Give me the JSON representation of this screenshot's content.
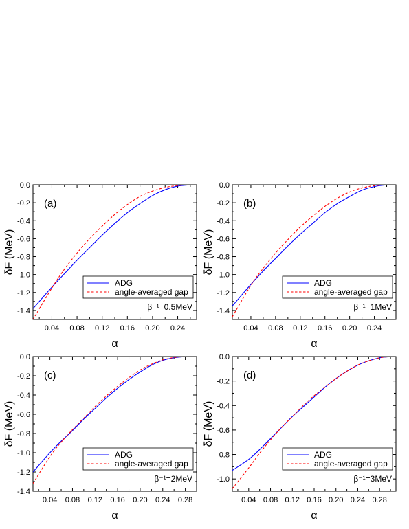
{
  "chart_data": [
    {
      "type": "line",
      "panel_label": "(a)",
      "annotation": "β⁻¹=0.5MeV",
      "xlabel": "α",
      "ylabel": "δF (MeV)",
      "xlim": [
        0.01,
        0.27
      ],
      "ylim": [
        -1.5,
        0.0
      ],
      "xticks": [
        "0.04",
        "0.08",
        "0.12",
        "0.16",
        "0.20",
        "0.24"
      ],
      "yticks": [
        "0.0",
        "-0.2",
        "-0.4",
        "-0.6",
        "-0.8",
        "-1.0",
        "-1.2",
        "-1.4"
      ],
      "legend_position": "lower-right",
      "series": [
        {
          "name": "ADG",
          "color": "#0000ff",
          "dash": "solid",
          "x": [
            0.01,
            0.04,
            0.06,
            0.08,
            0.1,
            0.12,
            0.14,
            0.16,
            0.18,
            0.2,
            0.22,
            0.24,
            0.26,
            0.27
          ],
          "y": [
            -1.38,
            -1.14,
            -0.99,
            -0.84,
            -0.7,
            -0.56,
            -0.43,
            -0.31,
            -0.21,
            -0.12,
            -0.055,
            -0.015,
            -0.001,
            0.0
          ]
        },
        {
          "name": "angle-averaged gap",
          "color": "#ff0000",
          "dash": "dashed",
          "x": [
            0.01,
            0.04,
            0.06,
            0.08,
            0.1,
            0.12,
            0.14,
            0.16,
            0.18,
            0.2,
            0.22,
            0.24,
            0.26,
            0.27
          ],
          "y": [
            -1.5,
            -1.15,
            -0.94,
            -0.76,
            -0.6,
            -0.46,
            -0.33,
            -0.22,
            -0.13,
            -0.07,
            -0.03,
            -0.008,
            -0.001,
            0.0
          ]
        }
      ]
    },
    {
      "type": "line",
      "panel_label": "(b)",
      "annotation": "β⁻¹=1MeV",
      "xlabel": "α",
      "ylabel": "δF (MeV)",
      "xlim": [
        0.01,
        0.275
      ],
      "ylim": [
        -1.5,
        0.0
      ],
      "xticks": [
        "0.04",
        "0.08",
        "0.12",
        "0.16",
        "0.20",
        "0.24"
      ],
      "yticks": [
        "0.0",
        "-0.2",
        "-0.4",
        "-0.6",
        "-0.8",
        "-1.0",
        "-1.2",
        "-1.4"
      ],
      "legend_position": "lower-right",
      "series": [
        {
          "name": "ADG",
          "color": "#0000ff",
          "dash": "solid",
          "x": [
            0.01,
            0.04,
            0.06,
            0.08,
            0.1,
            0.12,
            0.14,
            0.16,
            0.18,
            0.2,
            0.22,
            0.24,
            0.26,
            0.275
          ],
          "y": [
            -1.35,
            -1.11,
            -0.96,
            -0.82,
            -0.68,
            -0.55,
            -0.43,
            -0.31,
            -0.21,
            -0.13,
            -0.06,
            -0.02,
            -0.002,
            0.0
          ]
        },
        {
          "name": "angle-averaged gap",
          "color": "#ff0000",
          "dash": "dashed",
          "x": [
            0.01,
            0.04,
            0.06,
            0.08,
            0.1,
            0.12,
            0.14,
            0.16,
            0.18,
            0.2,
            0.22,
            0.24,
            0.26,
            0.275
          ],
          "y": [
            -1.47,
            -1.12,
            -0.93,
            -0.76,
            -0.61,
            -0.47,
            -0.35,
            -0.24,
            -0.15,
            -0.08,
            -0.035,
            -0.01,
            -0.001,
            0.0
          ]
        }
      ]
    },
    {
      "type": "line",
      "panel_label": "(c)",
      "annotation": "β⁻¹=2MeV",
      "xlabel": "α",
      "ylabel": "δF (MeV)",
      "xlim": [
        0.01,
        0.3
      ],
      "ylim": [
        -1.4,
        0.0
      ],
      "xticks": [
        "0.04",
        "0.08",
        "0.12",
        "0.16",
        "0.20",
        "0.24",
        "0.28"
      ],
      "yticks": [
        "0.0",
        "-0.2",
        "-0.4",
        "-0.6",
        "-0.8",
        "-1.0",
        "-1.2",
        "-1.4"
      ],
      "legend_position": "lower-right",
      "series": [
        {
          "name": "ADG",
          "color": "#0000ff",
          "dash": "solid",
          "x": [
            0.01,
            0.04,
            0.06,
            0.08,
            0.1,
            0.12,
            0.14,
            0.16,
            0.18,
            0.2,
            0.22,
            0.24,
            0.26,
            0.28,
            0.3
          ],
          "y": [
            -1.2,
            -1.0,
            -0.88,
            -0.77,
            -0.65,
            -0.54,
            -0.43,
            -0.33,
            -0.24,
            -0.16,
            -0.09,
            -0.04,
            -0.012,
            -0.001,
            0.0
          ]
        },
        {
          "name": "angle-averaged gap",
          "color": "#ff0000",
          "dash": "dashed",
          "x": [
            0.01,
            0.04,
            0.06,
            0.08,
            0.1,
            0.12,
            0.14,
            0.16,
            0.18,
            0.2,
            0.22,
            0.24,
            0.26,
            0.28,
            0.3
          ],
          "y": [
            -1.32,
            -1.04,
            -0.89,
            -0.76,
            -0.64,
            -0.52,
            -0.41,
            -0.31,
            -0.22,
            -0.14,
            -0.08,
            -0.035,
            -0.01,
            -0.001,
            0.0
          ]
        }
      ]
    },
    {
      "type": "line",
      "panel_label": "(d)",
      "annotation": "β⁻¹=3MeV",
      "xlabel": "α",
      "ylabel": "δF (MeV)",
      "xlim": [
        0.01,
        0.31
      ],
      "ylim": [
        -1.1,
        0.0
      ],
      "xticks": [
        "0.04",
        "0.08",
        "0.12",
        "0.16",
        "0.20",
        "0.24",
        "0.28"
      ],
      "yticks": [
        "0.0",
        "-0.2",
        "-0.4",
        "-0.6",
        "-0.8",
        "-1.0"
      ],
      "legend_position": "lower-right",
      "series": [
        {
          "name": "ADG",
          "color": "#0000ff",
          "dash": "solid",
          "x": [
            0.01,
            0.04,
            0.06,
            0.08,
            0.1,
            0.12,
            0.14,
            0.16,
            0.18,
            0.2,
            0.22,
            0.24,
            0.26,
            0.28,
            0.3,
            0.31
          ],
          "y": [
            -0.93,
            -0.84,
            -0.76,
            -0.67,
            -0.58,
            -0.49,
            -0.41,
            -0.33,
            -0.25,
            -0.18,
            -0.12,
            -0.07,
            -0.035,
            -0.01,
            -0.001,
            0.0
          ]
        },
        {
          "name": "angle-averaged gap",
          "color": "#ff0000",
          "dash": "dashed",
          "x": [
            0.01,
            0.04,
            0.06,
            0.08,
            0.1,
            0.12,
            0.14,
            0.16,
            0.18,
            0.2,
            0.22,
            0.24,
            0.26,
            0.28,
            0.3,
            0.31
          ],
          "y": [
            -1.08,
            -0.91,
            -0.79,
            -0.68,
            -0.58,
            -0.49,
            -0.4,
            -0.32,
            -0.25,
            -0.18,
            -0.12,
            -0.07,
            -0.035,
            -0.01,
            -0.001,
            0.0
          ]
        }
      ]
    }
  ]
}
